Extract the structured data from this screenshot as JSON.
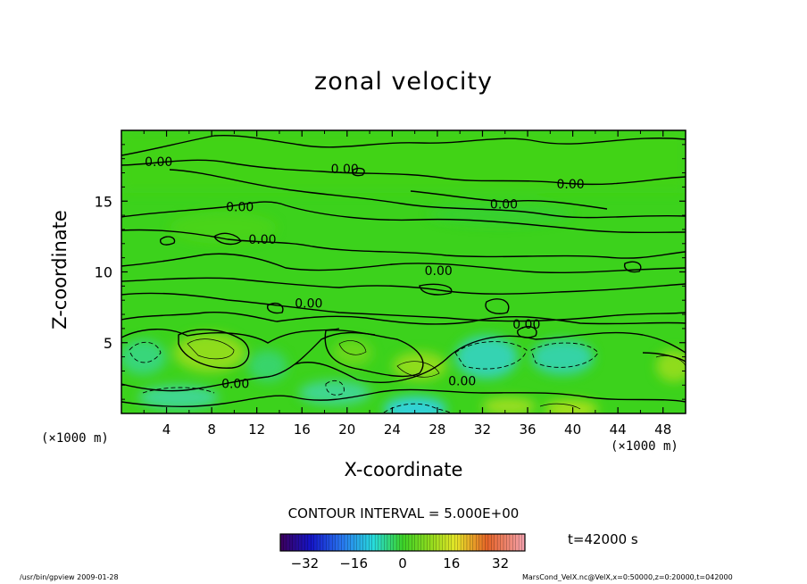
{
  "chart_data": {
    "type": "heatmap",
    "title": "zonal velocity",
    "xlabel": "X-coordinate",
    "ylabel": "Z-coordinate",
    "x_unit_left": "(×1000 m)",
    "x_unit_right": "(×1000 m)",
    "xlim": [
      0,
      50
    ],
    "ylim": [
      0,
      20
    ],
    "x_ticks": [
      4,
      8,
      12,
      16,
      20,
      24,
      28,
      32,
      36,
      40,
      44,
      48
    ],
    "y_ticks": [
      5,
      10,
      15
    ],
    "contour_labels": [
      {
        "text": "0.00",
        "x": 3.3,
        "z": 17.8
      },
      {
        "text": "0.00",
        "x": 19.8,
        "z": 17.3
      },
      {
        "text": "0.00",
        "x": 39.8,
        "z": 16.2
      },
      {
        "text": "0.00",
        "x": 33.9,
        "z": 14.8
      },
      {
        "text": "0.00",
        "x": 10.5,
        "z": 14.6
      },
      {
        "text": "0.00",
        "x": 12.5,
        "z": 12.3
      },
      {
        "text": "0.00",
        "x": 28.1,
        "z": 10.1
      },
      {
        "text": "0.00",
        "x": 16.6,
        "z": 7.8
      },
      {
        "text": "0.00",
        "x": 35.9,
        "z": 6.3
      },
      {
        "text": "0.00",
        "x": 10.1,
        "z": 2.1
      },
      {
        "text": "0.00",
        "x": 30.2,
        "z": 2.3
      }
    ],
    "contour_interval": "CONTOUR INTERVAL = 5.000E+00",
    "colorbar": {
      "ticks": [
        -32,
        -16,
        0,
        16,
        32
      ],
      "range": [
        -40,
        40
      ]
    },
    "time": "t=42000 s"
  },
  "footer": {
    "left": "/usr/bin/gpview  2009-01-28",
    "right": "MarsCond_VelX.nc@VelX,x=0:50000,z=0:20000,t=042000"
  },
  "colors": {
    "field": "#3fd620",
    "frame": "#000000"
  }
}
